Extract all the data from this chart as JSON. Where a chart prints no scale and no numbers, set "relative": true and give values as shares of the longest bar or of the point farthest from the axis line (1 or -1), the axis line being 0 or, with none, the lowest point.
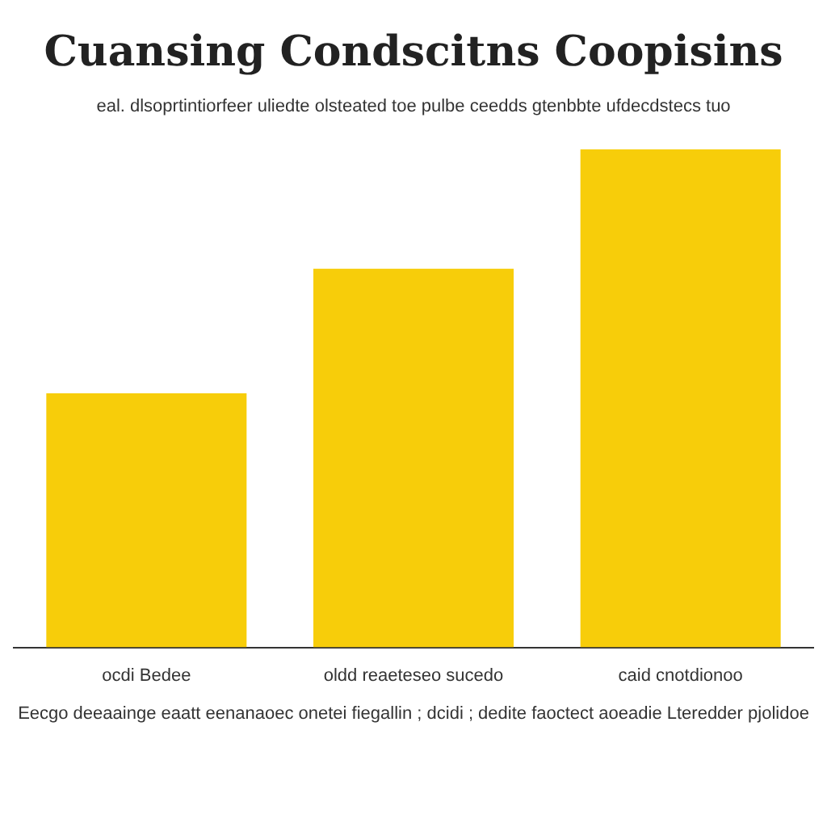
{
  "chart_data": {
    "type": "bar",
    "title": "Cuansing Condscitns Coopisins",
    "subtitle": "eal. dlsoprtintiorfeer uliedte olsteated toe pulbe ceedds gtenbbte ufdecdstecs tuo",
    "categories": [
      "ocdi Bedee",
      "oldd reaeteseo sucedo",
      "caid cnotdionoo"
    ],
    "values": [
      0.51,
      0.76,
      1
    ],
    "color": "#f7cd0a",
    "relative": true,
    "annotations": [
      "Eecgo deeaainge eaatt eenanaoec onetei fiegallin ; dcidi ; dedite faoctect aoeadie Lteredder pjolidoe"
    ]
  }
}
